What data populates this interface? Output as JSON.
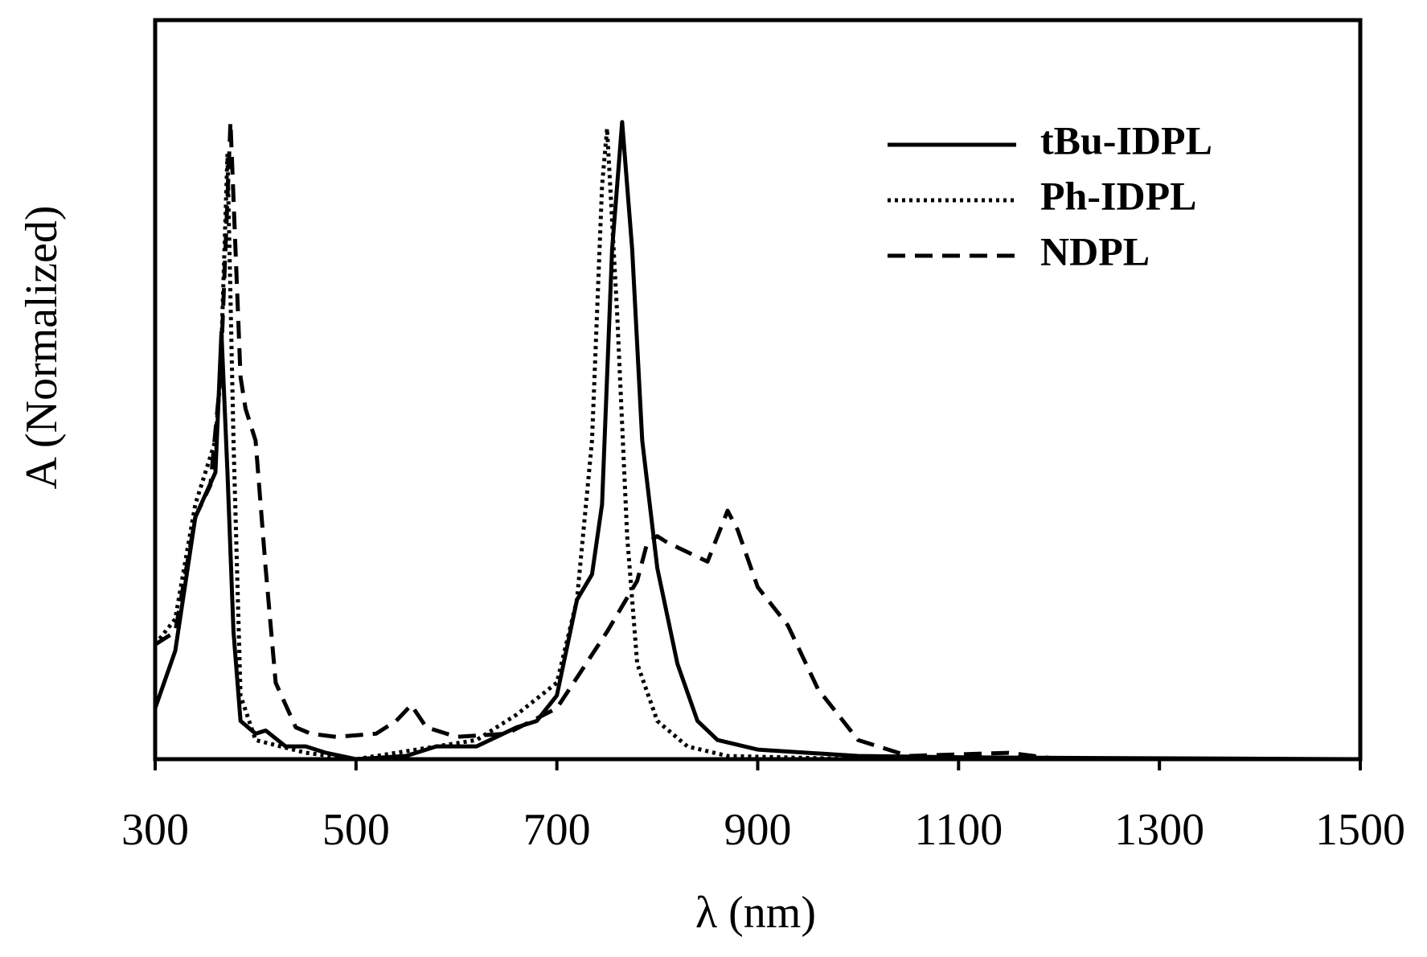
{
  "chart_data": {
    "type": "line",
    "x_label": "λ (nm)",
    "y_label": "A (Normalized)",
    "xlim": [
      300,
      1500
    ],
    "xticks": [
      300,
      500,
      700,
      900,
      1100,
      1300,
      1500
    ],
    "ylim": [
      0,
      1.16
    ],
    "legend": "upper right",
    "series": [
      {
        "name": "tBu-IDPL",
        "color": "#000000",
        "dash": "solid",
        "x": [
          300,
          320,
          340,
          360,
          366,
          372,
          378,
          385,
          400,
          410,
          430,
          450,
          470,
          500,
          550,
          580,
          620,
          660,
          680,
          700,
          720,
          735,
          745,
          755,
          765,
          775,
          785,
          800,
          820,
          840,
          860,
          900,
          1000,
          1100,
          1200,
          1500
        ],
        "values": [
          0.08,
          0.17,
          0.38,
          0.45,
          0.67,
          0.45,
          0.2,
          0.06,
          0.04,
          0.045,
          0.02,
          0.02,
          0.01,
          0.0,
          0.005,
          0.02,
          0.02,
          0.05,
          0.06,
          0.1,
          0.25,
          0.29,
          0.4,
          0.8,
          1.0,
          0.8,
          0.5,
          0.3,
          0.15,
          0.06,
          0.03,
          0.015,
          0.005,
          0.003,
          0.002,
          0.0
        ]
      },
      {
        "name": "Ph-IDPL",
        "color": "#000000",
        "dash": "dotted",
        "x": [
          300,
          320,
          340,
          360,
          365,
          372,
          378,
          385,
          400,
          450,
          500,
          580,
          620,
          660,
          700,
          720,
          735,
          745,
          750,
          760,
          770,
          780,
          800,
          830,
          870,
          1000,
          1500
        ],
        "values": [
          0.18,
          0.22,
          0.4,
          0.5,
          0.6,
          0.95,
          0.5,
          0.1,
          0.03,
          0.01,
          0.0,
          0.02,
          0.03,
          0.07,
          0.12,
          0.25,
          0.5,
          0.9,
          0.99,
          0.7,
          0.35,
          0.15,
          0.06,
          0.02,
          0.005,
          0.0,
          0.0
        ]
      },
      {
        "name": "NDPL",
        "color": "#000000",
        "dash": "dashed",
        "x": [
          300,
          320,
          340,
          355,
          365,
          375,
          385,
          390,
          400,
          410,
          420,
          440,
          455,
          480,
          520,
          540,
          555,
          570,
          600,
          650,
          700,
          750,
          780,
          790,
          800,
          810,
          850,
          870,
          880,
          900,
          930,
          960,
          1000,
          1050,
          1150,
          1200,
          1500
        ],
        "values": [
          0.18,
          0.2,
          0.38,
          0.43,
          0.6,
          1.0,
          0.6,
          0.55,
          0.5,
          0.3,
          0.12,
          0.05,
          0.04,
          0.035,
          0.04,
          0.06,
          0.085,
          0.05,
          0.035,
          0.04,
          0.08,
          0.2,
          0.28,
          0.34,
          0.35,
          0.34,
          0.31,
          0.39,
          0.36,
          0.27,
          0.21,
          0.11,
          0.03,
          0.005,
          0.01,
          0.0,
          0.0
        ]
      }
    ]
  }
}
